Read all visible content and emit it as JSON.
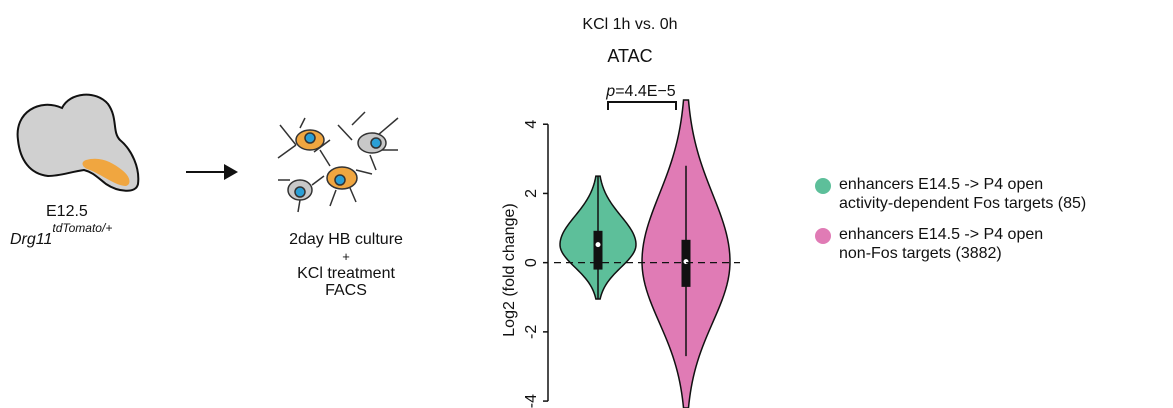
{
  "diagram": {
    "stage": "E12.5",
    "genotype": "Drg11",
    "genotype_superscript": "tdTomato/+",
    "culture_lines": [
      "2day HB culture",
      "+",
      "KCl treatment",
      "FACS"
    ]
  },
  "chart_data": {
    "type": "violin",
    "subtitle": "KCl 1h vs. 0h",
    "title": "ATAC",
    "y_label": "Log2 (fold change)",
    "ylim": [
      -4.2,
      4.7
    ],
    "yticks": [
      -4,
      -2,
      0,
      2,
      4
    ],
    "hline": 0,
    "significance": {
      "p_symbol": "p",
      "p_text": "=4.4E−5"
    },
    "series": [
      {
        "name": "enhancers E14.5 -> P4 open\nactivity-dependent Fos targets (85)",
        "color": "#5dbf9a",
        "min": -1.05,
        "whisker_low": -1.05,
        "q1": -0.2,
        "median": 0.52,
        "q3": 0.92,
        "whisker_high": 2.5,
        "max": 2.5
      },
      {
        "name": "enhancers E14.5 -> P4 open\nnon-Fos targets (3882)",
        "color": "#e07bb5",
        "min": -4.2,
        "whisker_low": -2.7,
        "q1": -0.7,
        "median": 0.03,
        "q3": 0.66,
        "whisker_high": 2.8,
        "max": 4.7
      }
    ]
  }
}
